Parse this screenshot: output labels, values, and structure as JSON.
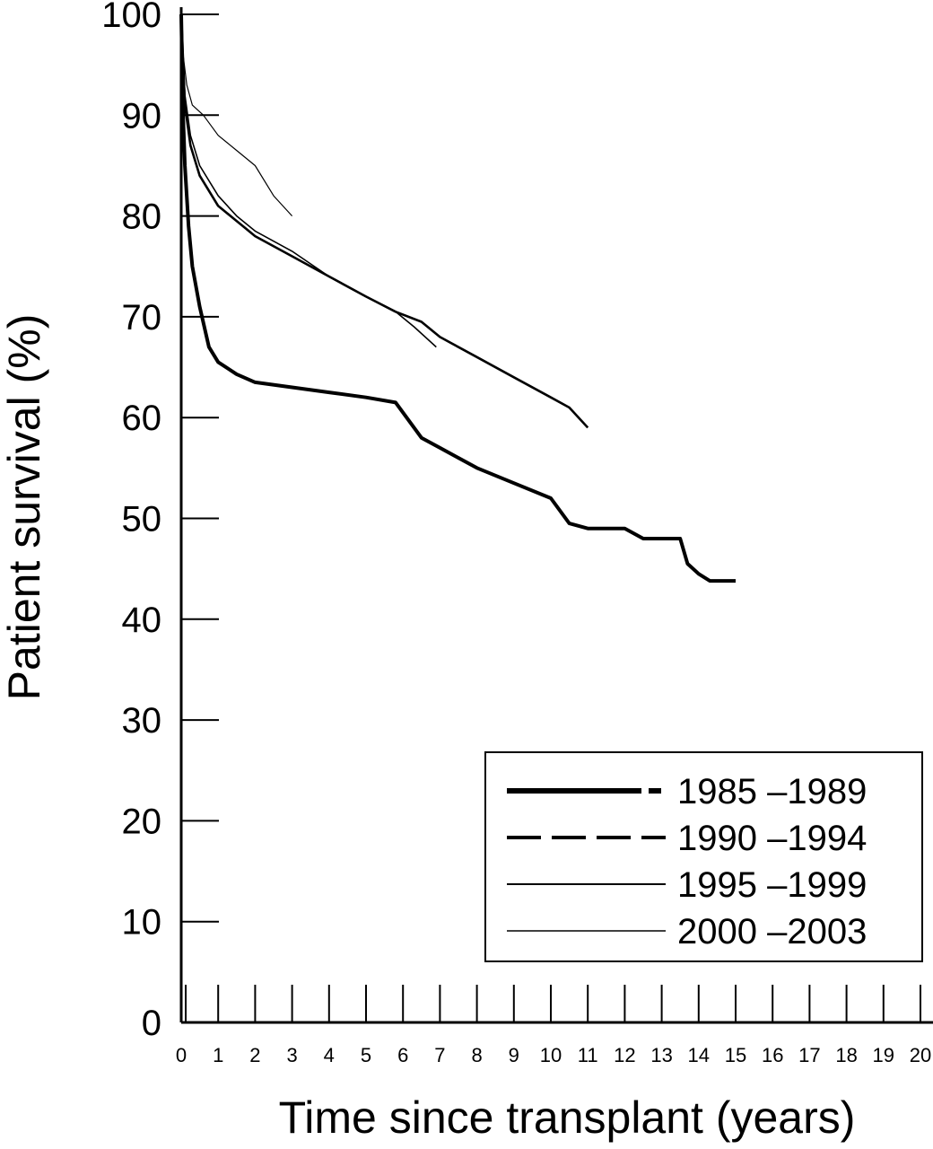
{
  "chart_data": {
    "type": "line",
    "xlabel": "Time since transplant (years)",
    "ylabel": "Patient survival (%)",
    "xlim": [
      0,
      20
    ],
    "ylim": [
      0,
      100
    ],
    "x_ticks": [
      0,
      1,
      2,
      3,
      4,
      5,
      6,
      7,
      8,
      9,
      10,
      11,
      12,
      13,
      14,
      15,
      16,
      17,
      18,
      19,
      20
    ],
    "y_ticks": [
      0,
      10,
      20,
      30,
      40,
      50,
      60,
      70,
      80,
      90,
      100
    ],
    "grid": false,
    "legend_position": "bottom-right",
    "series": [
      {
        "name": "1985 –1989",
        "style": "solid-thick",
        "points": [
          [
            0,
            100
          ],
          [
            0.05,
            90
          ],
          [
            0.1,
            85
          ],
          [
            0.2,
            79
          ],
          [
            0.3,
            75
          ],
          [
            0.5,
            71
          ],
          [
            0.75,
            67
          ],
          [
            1,
            65.5
          ],
          [
            1.5,
            64.3
          ],
          [
            2,
            63.5
          ],
          [
            3,
            63
          ],
          [
            4,
            62.5
          ],
          [
            5,
            62
          ],
          [
            5.8,
            61.5
          ],
          [
            6.5,
            58
          ],
          [
            7,
            57
          ],
          [
            8,
            55
          ],
          [
            9,
            53.5
          ],
          [
            10,
            52
          ],
          [
            10.5,
            49.5
          ],
          [
            11,
            49
          ],
          [
            12,
            49
          ],
          [
            12.5,
            48
          ],
          [
            13,
            48
          ],
          [
            13.5,
            48
          ],
          [
            13.7,
            45.5
          ],
          [
            14,
            44.5
          ],
          [
            14.3,
            43.8
          ],
          [
            15,
            43.8
          ]
        ]
      },
      {
        "name": "1990 –1994",
        "style": "dashed",
        "points": [
          [
            0,
            100
          ],
          [
            0.1,
            91
          ],
          [
            0.25,
            87
          ],
          [
            0.5,
            84
          ],
          [
            1,
            81
          ],
          [
            1.5,
            79.5
          ],
          [
            2,
            78
          ],
          [
            3,
            76
          ],
          [
            4,
            74
          ],
          [
            5,
            72
          ],
          [
            5.8,
            70.5
          ],
          [
            6.5,
            69.5
          ],
          [
            7,
            68
          ],
          [
            8,
            66
          ],
          [
            9,
            64
          ],
          [
            10,
            62
          ],
          [
            10.5,
            61
          ],
          [
            11,
            59
          ]
        ]
      },
      {
        "name": "1995 –1999",
        "style": "solid-thin",
        "points": [
          [
            0,
            100
          ],
          [
            0.1,
            92
          ],
          [
            0.25,
            88
          ],
          [
            0.5,
            85
          ],
          [
            1,
            82
          ],
          [
            1.5,
            80
          ],
          [
            2,
            78.5
          ],
          [
            3,
            76.5
          ],
          [
            4,
            74
          ],
          [
            5,
            72
          ],
          [
            5.8,
            70.5
          ],
          [
            6.3,
            69
          ],
          [
            6.9,
            67
          ]
        ]
      },
      {
        "name": "2000 –2003",
        "style": "solid-hair",
        "points": [
          [
            0,
            100
          ],
          [
            0.05,
            96
          ],
          [
            0.15,
            93
          ],
          [
            0.3,
            91
          ],
          [
            0.6,
            90
          ],
          [
            1,
            88
          ],
          [
            1.5,
            86.5
          ],
          [
            2,
            85
          ],
          [
            2.5,
            82
          ],
          [
            3,
            80
          ]
        ]
      }
    ]
  }
}
